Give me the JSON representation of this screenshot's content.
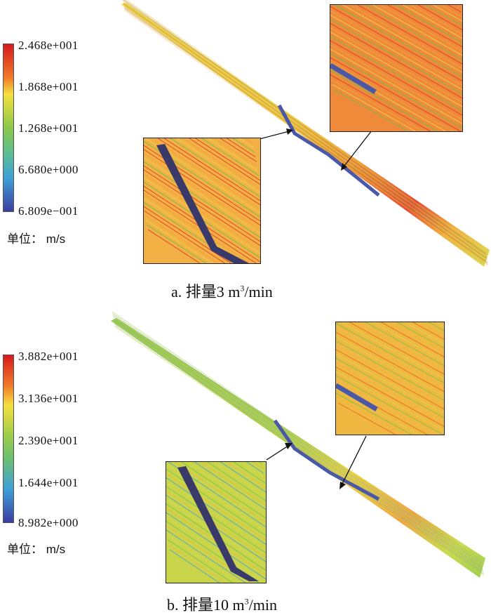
{
  "panels": [
    {
      "id": "a",
      "caption": {
        "prefix": "a. 排量3 m",
        "sup": "3",
        "suffix": "/min"
      },
      "legend": {
        "ticks": [
          "2.468e+001",
          "1.868e+001",
          "1.268e+001",
          "6.680e+000",
          "6.809e−001"
        ],
        "unit_label": "单位：  m/s",
        "max": 24.68,
        "min": 0.6809
      },
      "colors": {
        "hot": "#e03a2a",
        "warm": "#f2a23a",
        "mid": "#e8d84a",
        "cool": "#6cbf4a",
        "low": "#4a8fd0"
      }
    },
    {
      "id": "b",
      "caption": {
        "prefix": "b. 排量10 m",
        "sup": "3",
        "suffix": "/min"
      },
      "legend": {
        "ticks": [
          "3.882e+001",
          "3.136e+001",
          "2.390e+001",
          "1.644e+001",
          "8.982e+000"
        ],
        "unit_label": "单位：  m/s",
        "max": 38.82,
        "min": 8.982
      },
      "colors": {
        "hot": "#e86a2a",
        "warm": "#f0b840",
        "mid": "#d4d84a",
        "cool": "#7cc24e",
        "low": "#5aa0c8"
      }
    }
  ],
  "colormap": [
    "#d7191c",
    "#f07a2a",
    "#f5e040",
    "#7cc24a",
    "#3fa0d8",
    "#3b3ea0"
  ]
}
